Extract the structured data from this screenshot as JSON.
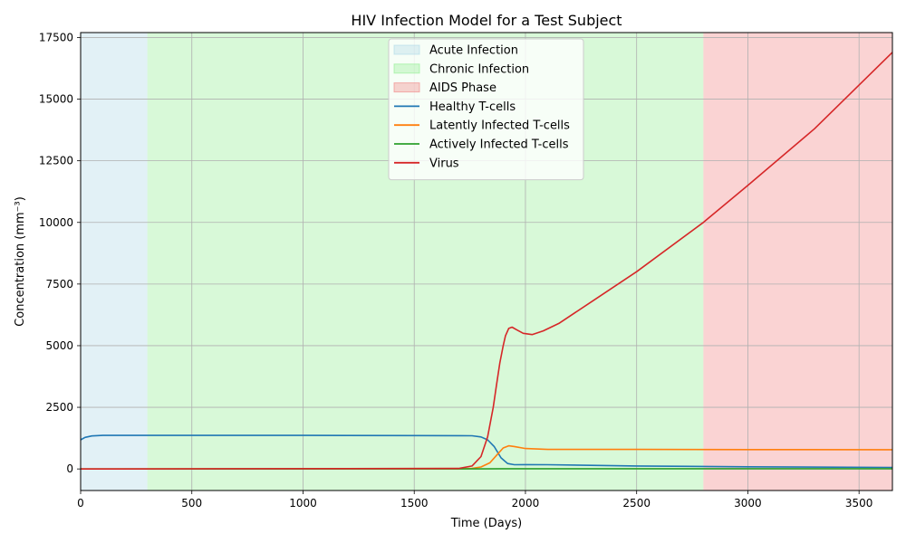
{
  "chart_data": {
    "type": "line",
    "title": "HIV Infection Model for a Test Subject",
    "xlabel": "Time (Days)",
    "ylabel": "Concentration (mm⁻³)",
    "xlim": [
      0,
      3650
    ],
    "ylim": [
      -875,
      17700
    ],
    "x_ticks": [
      0,
      500,
      1000,
      1500,
      2000,
      2500,
      3000,
      3500
    ],
    "y_ticks": [
      0,
      2500,
      5000,
      7500,
      10000,
      12500,
      15000,
      17500
    ],
    "grid": true,
    "legend_position": "upper-center",
    "phases": [
      {
        "name": "Acute Infection",
        "x_start": 0,
        "x_end": 300,
        "color": "#add8e6"
      },
      {
        "name": "Chronic Infection",
        "x_start": 300,
        "x_end": 2800,
        "color": "#90ee90"
      },
      {
        "name": "AIDS Phase",
        "x_start": 2800,
        "x_end": 3650,
        "color": "#f08080"
      }
    ],
    "series": [
      {
        "name": "Healthy T-cells",
        "color": "#1f77b4",
        "x": [
          0,
          20,
          50,
          100,
          200,
          500,
          1000,
          1500,
          1700,
          1760,
          1800,
          1830,
          1860,
          1890,
          1920,
          1950,
          2000,
          2100,
          2500,
          3000,
          3650
        ],
        "y": [
          1180,
          1280,
          1340,
          1360,
          1360,
          1360,
          1360,
          1355,
          1350,
          1345,
          1300,
          1180,
          900,
          450,
          220,
          170,
          175,
          170,
          120,
          85,
          60
        ]
      },
      {
        "name": "Latently Infected T-cells",
        "color": "#ff7f0e",
        "x": [
          0,
          1700,
          1760,
          1800,
          1840,
          1870,
          1900,
          1925,
          1950,
          2000,
          2100,
          2500,
          3000,
          3650
        ],
        "y": [
          0,
          2,
          20,
          80,
          250,
          550,
          850,
          940,
          910,
          830,
          790,
          790,
          785,
          780
        ]
      },
      {
        "name": "Actively Infected T-cells",
        "color": "#2ca02c",
        "x": [
          0,
          1800,
          1900,
          1950,
          2500,
          3650
        ],
        "y": [
          0,
          2,
          8,
          10,
          8,
          8
        ]
      },
      {
        "name": "Virus",
        "color": "#d62728",
        "x": [
          0,
          1700,
          1760,
          1800,
          1830,
          1855,
          1870,
          1885,
          1900,
          1910,
          1925,
          1940,
          1960,
          1990,
          2030,
          2080,
          2150,
          2300,
          2500,
          2800,
          3000,
          3300,
          3650
        ],
        "y": [
          0,
          20,
          120,
          500,
          1300,
          2500,
          3400,
          4300,
          5000,
          5400,
          5700,
          5750,
          5650,
          5500,
          5450,
          5600,
          5900,
          6800,
          8000,
          10000,
          11500,
          13800,
          16900
        ]
      }
    ]
  }
}
